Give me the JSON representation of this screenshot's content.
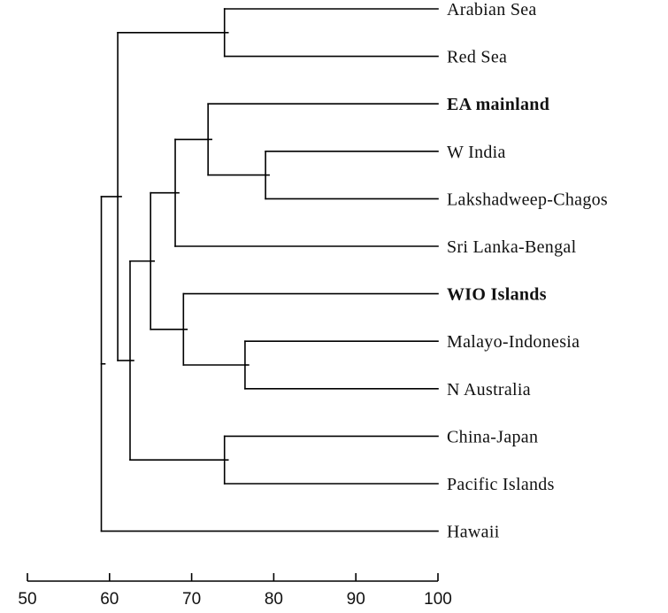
{
  "chart_data": {
    "type": "dendrogram",
    "title": "",
    "xlabel": "",
    "ylabel": "",
    "xlim": [
      50,
      100
    ],
    "x_ticks": [
      50,
      60,
      70,
      80,
      90,
      100
    ],
    "x_tick_labels": [
      "50",
      "60",
      "70",
      "80",
      "90",
      "100"
    ],
    "leaves": [
      {
        "label": "Arabian Sea",
        "bold": false
      },
      {
        "label": "Red Sea",
        "bold": false
      },
      {
        "label": "EA mainland",
        "bold": true
      },
      {
        "label": "W India",
        "bold": false
      },
      {
        "label": "Lakshadweep-Chagos",
        "bold": false
      },
      {
        "label": "Sri Lanka-Bengal",
        "bold": false
      },
      {
        "label": "WIO Islands",
        "bold": true
      },
      {
        "label": "Malayo-Indonesia",
        "bold": false
      },
      {
        "label": "N Australia",
        "bold": false
      },
      {
        "label": "China-Japan",
        "bold": false
      },
      {
        "label": "Pacific Islands",
        "bold": false
      },
      {
        "label": "Hawaii",
        "bold": false
      }
    ],
    "merges": [
      {
        "a": "L0",
        "b": "L1",
        "similarity": 74
      },
      {
        "a": "L3",
        "b": "L4",
        "similarity": 79
      },
      {
        "a": "L2",
        "b": "N1",
        "similarity": 72
      },
      {
        "a": "N2",
        "b": "L5",
        "similarity": 68
      },
      {
        "a": "L7",
        "b": "L8",
        "similarity": 76.5
      },
      {
        "a": "L6",
        "b": "N4",
        "similarity": 69
      },
      {
        "a": "N3",
        "b": "N5",
        "similarity": 65
      },
      {
        "a": "L9",
        "b": "L10",
        "similarity": 74
      },
      {
        "a": "N6",
        "b": "N7",
        "similarity": 62.5
      },
      {
        "a": "N0",
        "b": "N8",
        "similarity": 61
      },
      {
        "a": "N9",
        "b": "L11",
        "similarity": 59
      }
    ]
  }
}
